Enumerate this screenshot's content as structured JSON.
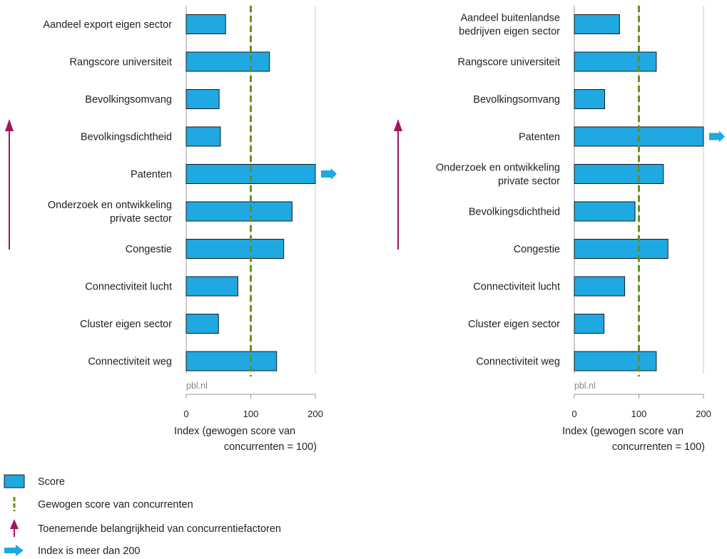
{
  "colors": {
    "bar": "#1fa8e1",
    "bar_border": "#1a1a1a",
    "reference_line": "#6a8f1c",
    "importance_arrow": "#a3145f",
    "overflow_arrow": "#1fa8e1",
    "grid": "#cccccc",
    "axis": "#999999"
  },
  "chart_data": [
    {
      "type": "bar",
      "orientation": "horizontal",
      "categories": [
        "Aandeel export eigen sector",
        "Rangscore universiteit",
        "Bevolkingsomvang",
        "Bevolkingsdichtheid",
        "Patenten",
        "Onderzoek en ontwikkeling private sector",
        "Congestie",
        "Connectiviteit lucht",
        "Cluster eigen sector",
        "Connectiviteit weg"
      ],
      "category_lines": [
        [
          "Aandeel export eigen sector"
        ],
        [
          "Rangscore universiteit"
        ],
        [
          "Bevolkingsomvang"
        ],
        [
          "Bevolkingsdichtheid"
        ],
        [
          "Patenten"
        ],
        [
          "Onderzoek en ontwikkeling",
          "private sector"
        ],
        [
          "Congestie"
        ],
        [
          "Connectiviteit lucht"
        ],
        [
          "Cluster eigen sector"
        ],
        [
          "Connectiviteit weg"
        ]
      ],
      "series": [
        {
          "name": "Score",
          "values": [
            61,
            129,
            51,
            53,
            200,
            164,
            151,
            80,
            50,
            140
          ]
        }
      ],
      "exceeds_200": [
        false,
        false,
        false,
        false,
        true,
        false,
        false,
        false,
        false,
        false
      ],
      "reference_value": 100,
      "xlim": [
        0,
        200
      ],
      "xticks": [
        "0",
        "100",
        "200"
      ],
      "xlabel_lines": [
        "Index (gewogen score van",
        "concurrenten = 100)"
      ],
      "source": "pbl.nl",
      "grid": true
    },
    {
      "type": "bar",
      "orientation": "horizontal",
      "categories": [
        "Aandeel buitenlandse bedrijven eigen sector",
        "Rangscore universiteit",
        "Bevolkingsomvang",
        "Patenten",
        "Onderzoek en ontwikkeling private sector",
        "Bevolkingsdichtheid",
        "Congestie",
        "Connectiviteit lucht",
        "Cluster eigen sector",
        "Connectiviteit weg"
      ],
      "category_lines": [
        [
          "Aandeel buitenlandse",
          "bedrijven eigen sector"
        ],
        [
          "Rangscore universiteit"
        ],
        [
          "Bevolkingsomvang"
        ],
        [
          "Patenten"
        ],
        [
          "Onderzoek en ontwikkeling",
          "private sector"
        ],
        [
          "Bevolkingsdichtheid"
        ],
        [
          "Congestie"
        ],
        [
          "Connectiviteit lucht"
        ],
        [
          "Cluster eigen sector"
        ],
        [
          "Connectiviteit weg"
        ]
      ],
      "series": [
        {
          "name": "Score",
          "values": [
            70,
            127,
            47,
            200,
            138,
            94,
            145,
            78,
            46,
            127
          ]
        }
      ],
      "exceeds_200": [
        false,
        false,
        false,
        true,
        false,
        false,
        false,
        false,
        false,
        false
      ],
      "reference_value": 100,
      "xlim": [
        0,
        200
      ],
      "xticks": [
        "0",
        "100",
        "200"
      ],
      "xlabel_lines": [
        "Index (gewogen score van",
        "concurrenten = 100)"
      ],
      "source": "pbl.nl",
      "grid": true
    }
  ],
  "legend": {
    "placement": "bottom-left",
    "items": [
      {
        "symbol": "bar",
        "label": "Score"
      },
      {
        "symbol": "dashed-line",
        "label": "Gewogen score van concurrenten"
      },
      {
        "symbol": "up-arrow",
        "label": "Toenemende belangrijkheid van concurrentiefactoren"
      },
      {
        "symbol": "right-arrow",
        "label": "Index is meer dan 200"
      }
    ]
  }
}
